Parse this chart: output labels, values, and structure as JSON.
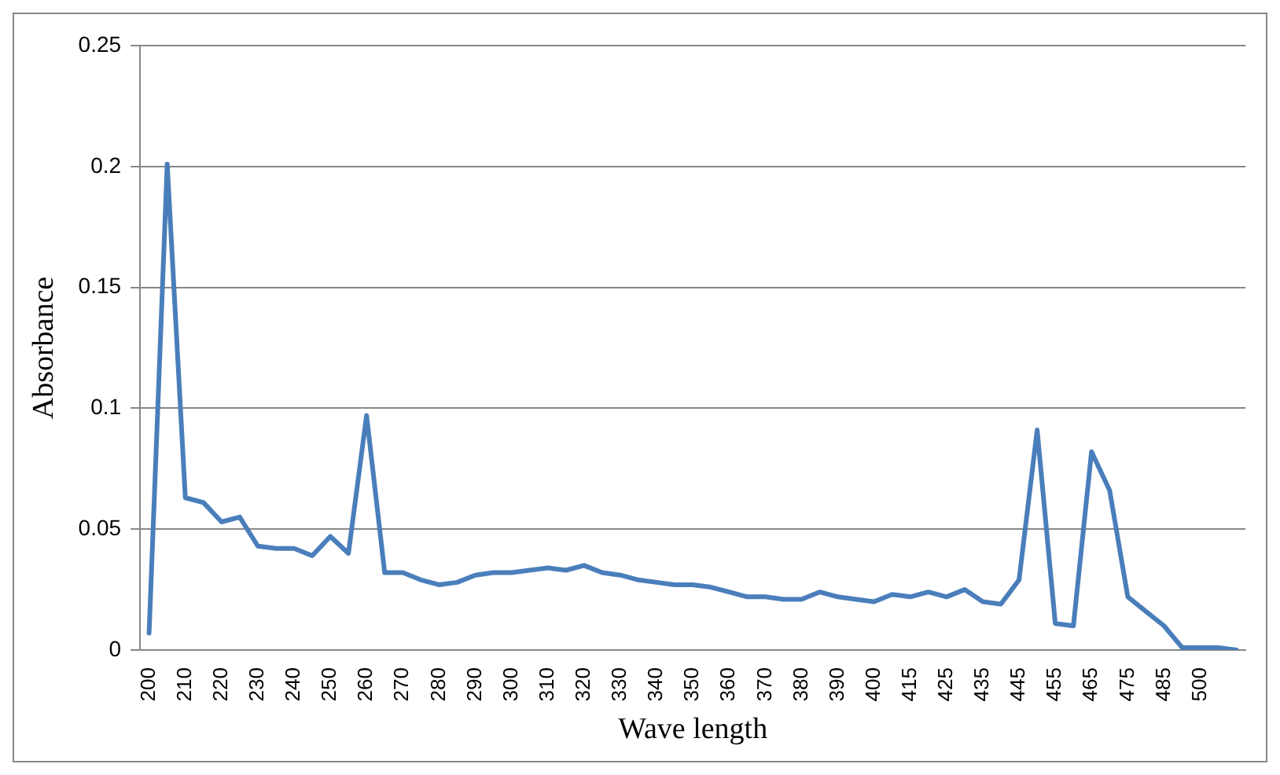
{
  "chart_data": {
    "type": "line",
    "xlabel": "Wave length",
    "ylabel": "Absorbance",
    "categories": [
      "200",
      null,
      "210",
      null,
      "220",
      null,
      "230",
      null,
      "240",
      null,
      "250",
      null,
      "260",
      null,
      "270",
      null,
      "280",
      null,
      "290",
      null,
      "300",
      null,
      "310",
      null,
      "320",
      null,
      "330",
      null,
      "340",
      null,
      "350",
      null,
      "360",
      null,
      "370",
      null,
      "380",
      null,
      "390",
      null,
      "400",
      null,
      "415",
      null,
      "425",
      null,
      "435",
      null,
      "445",
      null,
      "455",
      null,
      "465",
      null,
      "475",
      null,
      "485",
      null,
      "500",
      null,
      null
    ],
    "series": [
      {
        "color": "#4a7ebb",
        "values": [
          0.007,
          0.201,
          0.063,
          0.061,
          0.053,
          0.055,
          0.043,
          0.042,
          0.042,
          0.039,
          0.047,
          0.04,
          0.097,
          0.032,
          0.032,
          0.029,
          0.027,
          0.028,
          0.031,
          0.032,
          0.032,
          0.033,
          0.034,
          0.033,
          0.035,
          0.032,
          0.031,
          0.029,
          0.028,
          0.027,
          0.027,
          0.026,
          0.024,
          0.022,
          0.022,
          0.021,
          0.021,
          0.024,
          0.022,
          0.021,
          0.02,
          0.023,
          0.022,
          0.024,
          0.022,
          0.025,
          0.02,
          0.019,
          0.029,
          0.091,
          0.011,
          0.01,
          0.082,
          0.066,
          0.022,
          0.016,
          0.01,
          0.001,
          0.001,
          0.001,
          0.0
        ]
      }
    ],
    "ylim": [
      0,
      0.25
    ],
    "yticks": [
      0,
      0.05,
      0.1,
      0.15,
      0.2,
      0.25
    ],
    "grid": "y",
    "marker": "none",
    "line_style": "solid"
  }
}
